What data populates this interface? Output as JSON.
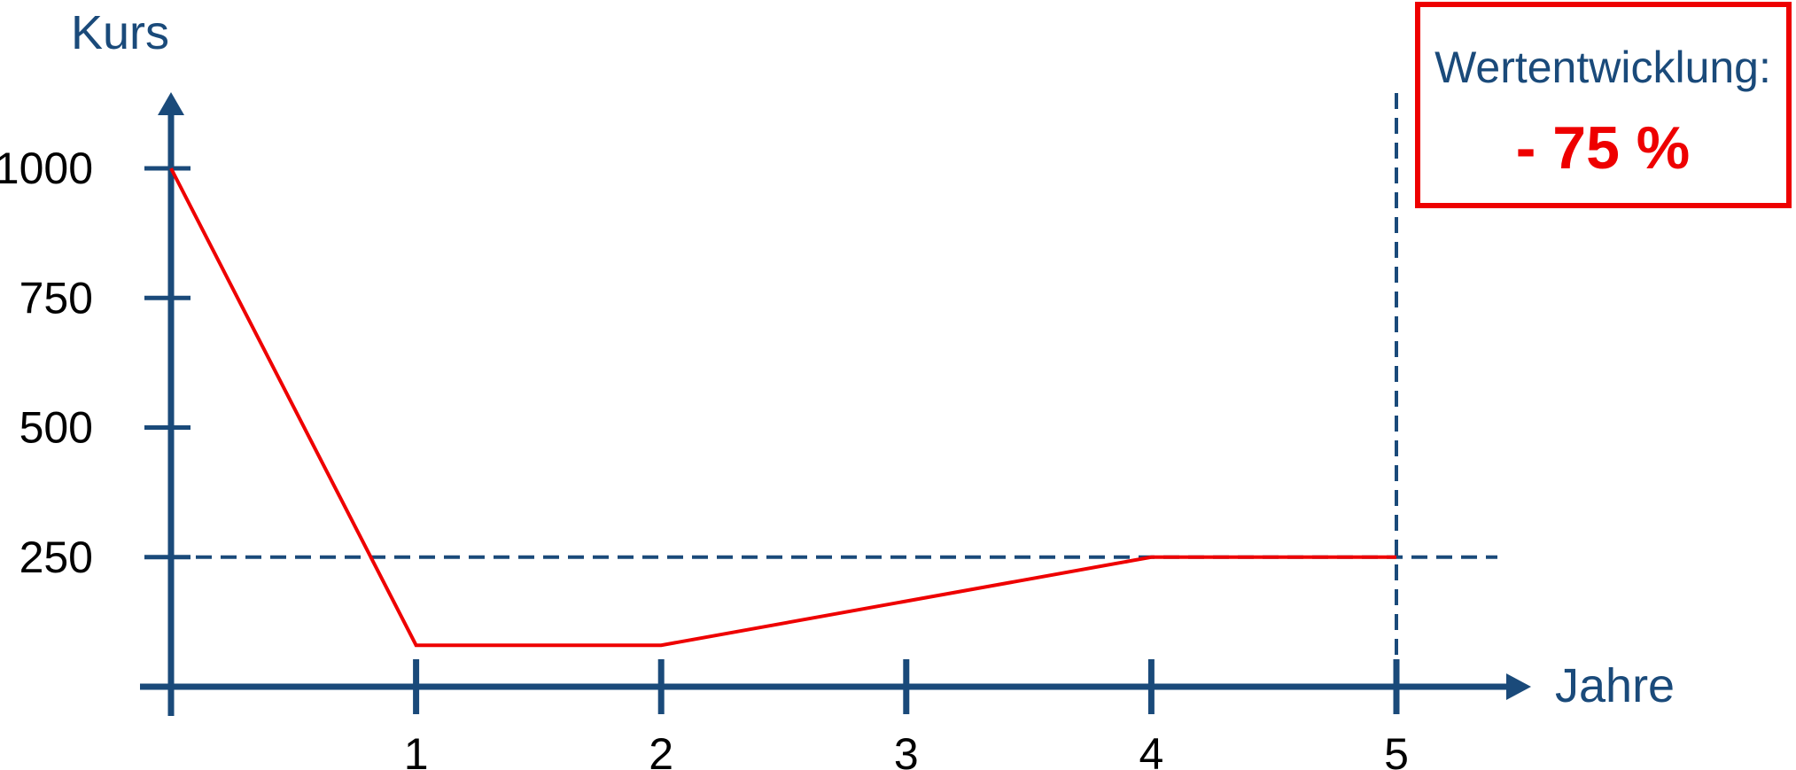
{
  "chart_data": {
    "type": "line",
    "ylabel": "Kurs",
    "xlabel": "Jahre",
    "x_ticks": [
      1,
      2,
      3,
      4,
      5
    ],
    "y_ticks": [
      1000,
      750,
      500,
      250
    ],
    "xlim": [
      0,
      5.5
    ],
    "ylim": [
      0,
      1000
    ],
    "series": [
      {
        "x": [
          0,
          1,
          2,
          4,
          5
        ],
        "y": [
          1000,
          80,
          80,
          250,
          250
        ]
      }
    ],
    "reference_lines": {
      "horizontal_y": 250,
      "vertical_x": 5
    },
    "annotation": {
      "title": "Wertentwicklung:",
      "value": "- 75 %"
    },
    "colors": {
      "axis": "#1a4a7a",
      "line": "#ee0000",
      "box_border": "#ee0000"
    }
  }
}
